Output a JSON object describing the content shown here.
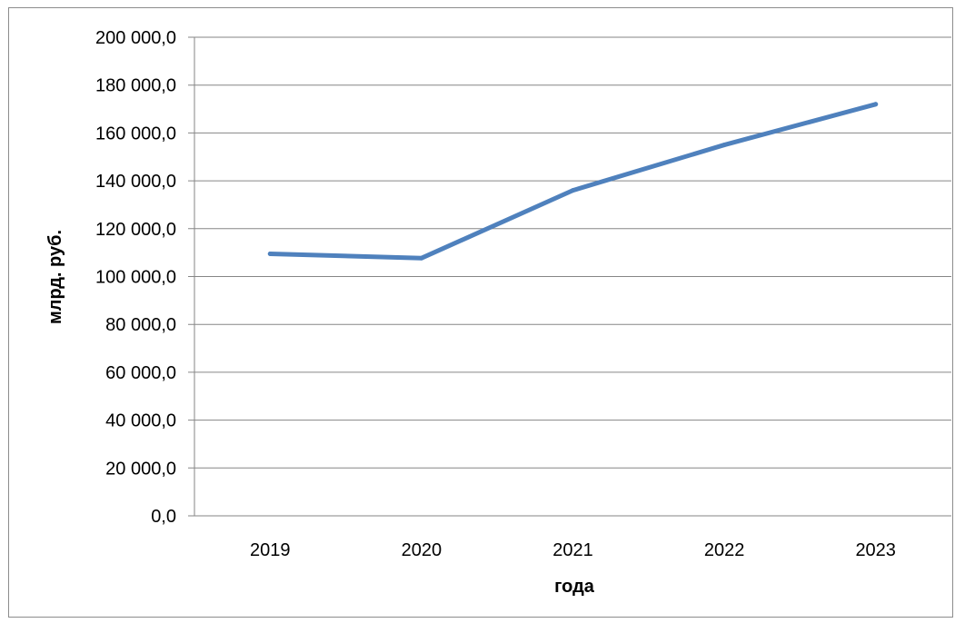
{
  "chart_data": {
    "type": "line",
    "title": "",
    "xlabel": "года",
    "ylabel": "млрд. руб.",
    "categories": [
      "2019",
      "2020",
      "2021",
      "2022",
      "2023"
    ],
    "series": [
      {
        "values": [
          109500,
          107700,
          136000,
          155000,
          172000
        ]
      }
    ],
    "ylim": [
      0,
      200000
    ],
    "y_ticks": [
      0,
      20000,
      40000,
      60000,
      80000,
      100000,
      120000,
      140000,
      160000,
      180000,
      200000
    ],
    "y_tick_labels": [
      "0,0",
      "20 000,0",
      "40 000,0",
      "60 000,0",
      "80 000,0",
      "100 000,0",
      "120 000,0",
      "140 000,0",
      "160 000,0",
      "180 000,0",
      "200 000,0"
    ],
    "grid": true,
    "legend": "none",
    "line_color": "#4F81BD",
    "grid_color": "#868686"
  }
}
